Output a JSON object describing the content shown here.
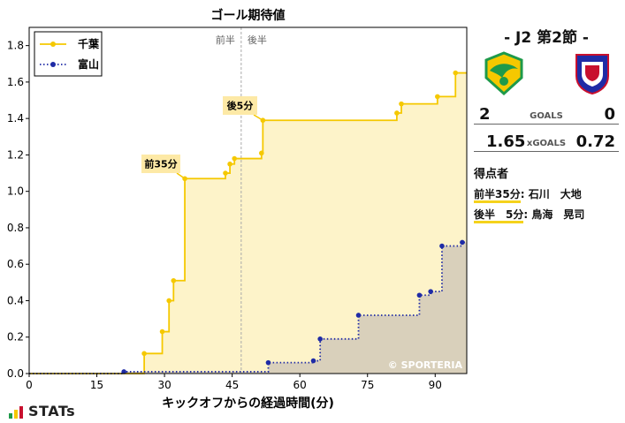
{
  "chart_data": {
    "type": "line",
    "title": "ゴール期待値",
    "xlabel": "キックオフからの経過時間(分)",
    "ylabel": "",
    "xlim": [
      0,
      97
    ],
    "ylim": [
      0,
      1.9
    ],
    "x_ticks": [
      0,
      15,
      30,
      45,
      60,
      75,
      90
    ],
    "y_ticks": [
      0.0,
      0.2,
      0.4,
      0.6,
      0.8,
      1.0,
      1.2,
      1.4,
      1.6,
      1.8
    ],
    "grid": false,
    "legend_position": "top-left",
    "halftime": {
      "x": 47,
      "left_label": "前半",
      "right_label": "後半"
    },
    "series": [
      {
        "name": "千葉",
        "color": "#f5c800",
        "fill": "#fdf3c9",
        "line_style": "solid",
        "x": [
          0,
          25.5,
          29.5,
          31,
          32,
          34.5,
          43.5,
          44.5,
          45.5,
          51.5,
          51.8,
          81.5,
          82.5,
          90.5,
          94.5,
          97
        ],
        "y": [
          0,
          0.11,
          0.23,
          0.4,
          0.51,
          1.07,
          1.1,
          1.15,
          1.18,
          1.21,
          1.39,
          1.43,
          1.48,
          1.52,
          1.65,
          1.65
        ]
      },
      {
        "name": "富山",
        "color": "#1f2ba6",
        "fill": "#d9d0bb",
        "line_style": "dotted",
        "x": [
          0,
          21,
          53,
          63,
          64.5,
          73,
          86.5,
          89,
          91.5,
          96,
          97
        ],
        "y": [
          0,
          0.01,
          0.06,
          0.07,
          0.19,
          0.32,
          0.43,
          0.45,
          0.7,
          0.72,
          0.72
        ]
      }
    ],
    "annotations": [
      {
        "text": "前35分",
        "x": 34.5,
        "y": 1.07
      },
      {
        "text": "後5分",
        "x": 51.8,
        "y": 1.39
      }
    ],
    "watermark": "© SPORTERIA"
  },
  "match": {
    "title": "- J2 第2節 -",
    "home": {
      "name": "千葉",
      "goals": "2",
      "xg": "1.65"
    },
    "away": {
      "name": "富山",
      "goals": "0",
      "xg": "0.72"
    },
    "goals_label": "GOALS",
    "xgoals_label": "xGOALS"
  },
  "scorers": {
    "heading": "得点者",
    "items": [
      {
        "when": "前半35分",
        "name": "石川　大地"
      },
      {
        "when": "後半　5分",
        "name": "鳥海　晃司"
      }
    ]
  },
  "brand": "STATs",
  "colors": {
    "home_yellow": "#f5c800",
    "home_green": "#1e9a4a",
    "away_navy": "#1f2ba6",
    "away_red": "#c8102e"
  }
}
